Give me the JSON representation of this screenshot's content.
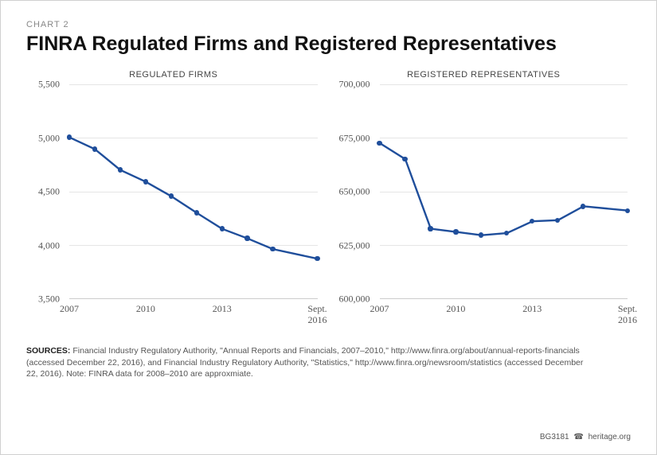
{
  "header": {
    "chart_label": "CHART 2",
    "title": "FINRA Regulated Firms and Registered Representatives"
  },
  "left_chart": {
    "type": "line",
    "title": "REGULATED FIRMS",
    "ylim": [
      3500,
      5500
    ],
    "yticks": [
      3500,
      4000,
      4500,
      5000,
      5500
    ],
    "ytick_labels": [
      "3,500",
      "4,000",
      "4,500",
      "5,000",
      "5,500"
    ],
    "x_domain": [
      2007,
      2016.75
    ],
    "xticks": [
      2007,
      2010,
      2013,
      2016.75
    ],
    "xtick_labels": [
      "2007",
      "2010",
      "2013",
      "Sept.\n2016"
    ],
    "x": [
      2007,
      2008,
      2009,
      2010,
      2011,
      2012,
      2013,
      2014,
      2015,
      2016.75
    ],
    "y": [
      5005,
      4895,
      4700,
      4590,
      4455,
      4300,
      4150,
      4060,
      3960,
      3870
    ],
    "line_color": "#1f4e9b",
    "line_width": 2.4,
    "marker_radius": 3.2,
    "marker_color": "#1f4e9b",
    "grid_color": "#e5e5e5",
    "background_color": "#ffffff"
  },
  "right_chart": {
    "type": "line",
    "title": "REGISTERED REPRESENTATIVES",
    "ylim": [
      600000,
      700000
    ],
    "yticks": [
      600000,
      625000,
      650000,
      675000,
      700000
    ],
    "ytick_labels": [
      "600,000",
      "625,000",
      "650,000",
      "675,000",
      "700,000"
    ],
    "x_domain": [
      2007,
      2016.75
    ],
    "xticks": [
      2007,
      2010,
      2013,
      2016.75
    ],
    "xtick_labels": [
      "2007",
      "2010",
      "2013",
      "Sept.\n2016"
    ],
    "x": [
      2007,
      2008,
      2009,
      2010,
      2011,
      2012,
      2013,
      2014,
      2015,
      2016.75
    ],
    "y": [
      672500,
      665000,
      632500,
      631000,
      629500,
      630500,
      636000,
      636500,
      643000,
      641000
    ],
    "line_color": "#1f4e9b",
    "line_width": 2.4,
    "marker_radius": 3.2,
    "marker_color": "#1f4e9b",
    "grid_color": "#e5e5e5",
    "background_color": "#ffffff"
  },
  "sources": {
    "label": "SOURCES:",
    "text": "Financial Industry Regulatory Authority, \"Annual Reports and Financials, 2007–2010,\" http://www.finra.org/about/annual-reports-financials (accessed December 22, 2016), and Financial Industry Regulatory Authority, \"Statistics,\" http://www.finra.org/newsroom/statistics (accessed December 22, 2016). Note: FINRA data for 2008–2010 are approxmiate."
  },
  "footer": {
    "code": "BG3181",
    "site": "heritage.org"
  }
}
